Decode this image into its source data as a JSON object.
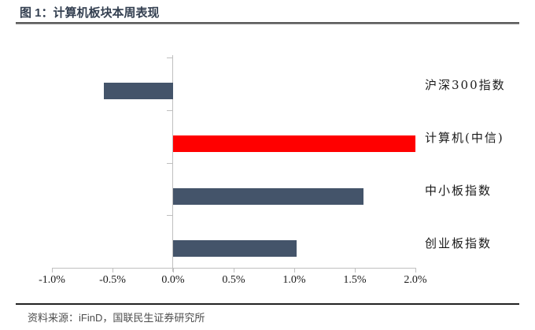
{
  "page": {
    "title": "图 1：计算机板块本周表现",
    "source_note": "资料来源：iFinD，国联民生证券研究所"
  },
  "colors": {
    "title_text": "#333F50",
    "bar_default": "#44546A",
    "bar_highlight": "#FF0000",
    "axis_line": "#BFBFBF",
    "footer_text": "#4D4D4D"
  },
  "chart_data": {
    "type": "bar",
    "orientation": "horizontal",
    "title": "计算机板块本周表现",
    "categories": [
      "沪深300指数",
      "计算机(中信)",
      "中小板指数",
      "创业板指数"
    ],
    "values": [
      -0.57,
      2.0,
      1.57,
      1.02
    ],
    "unit": "%",
    "highlight_category": "计算机(中信)",
    "highlight_color": "#FF0000",
    "bar_color": "#44546A",
    "x_tick_labels": [
      "-1.0%",
      "-0.5%",
      "0.0%",
      "0.5%",
      "1.0%",
      "1.5%",
      "2.0%"
    ],
    "x_tick_values": [
      -1.0,
      -0.5,
      0.0,
      0.5,
      1.0,
      1.5,
      2.0
    ],
    "xlim": [
      -1.0,
      2.0
    ],
    "grid": false,
    "legend": "none",
    "category_label_side": "right"
  }
}
